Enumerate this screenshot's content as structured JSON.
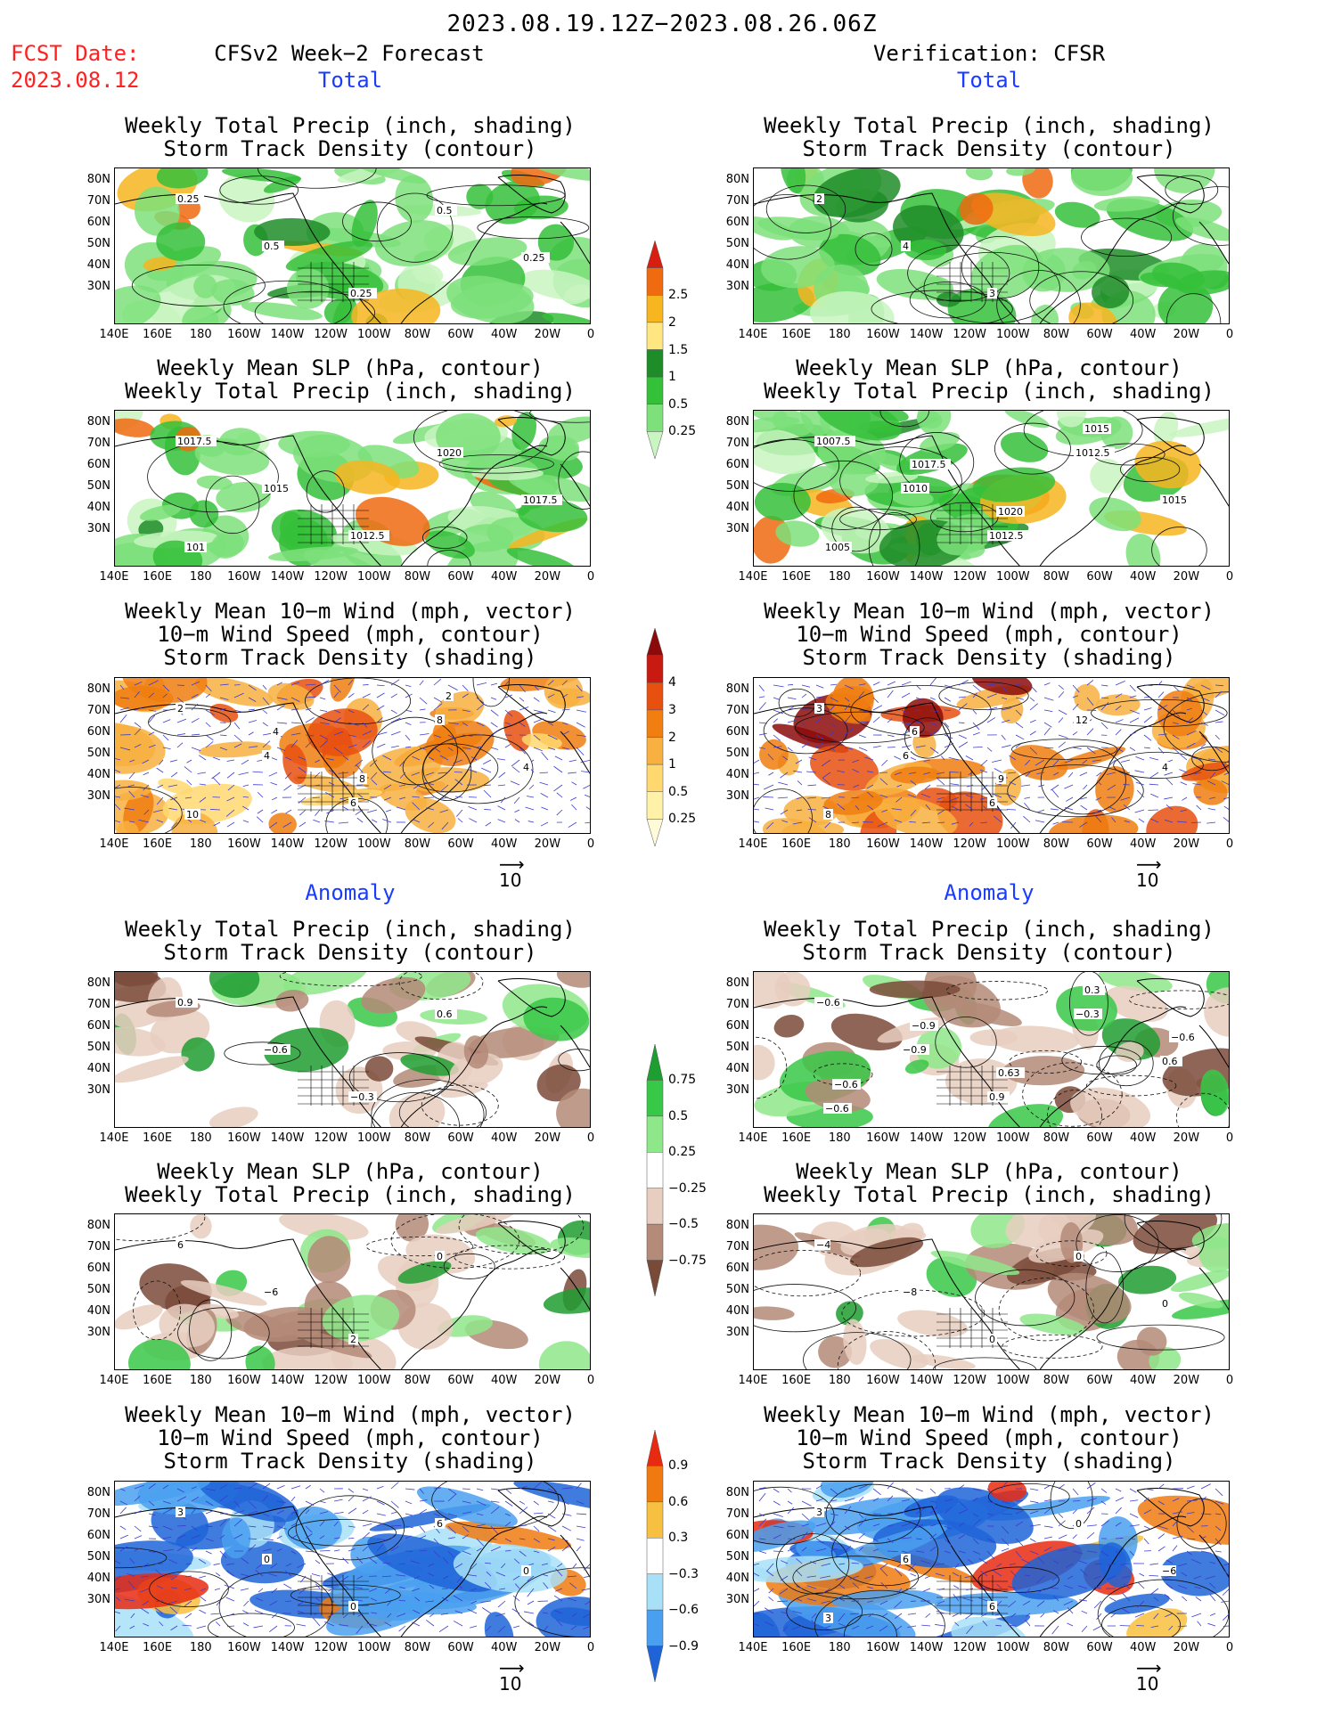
{
  "header": {
    "title": "2023.08.19.12Z−2023.08.26.06Z",
    "fcst_label": "FCST Date:",
    "fcst_date": "2023.08.12",
    "left_title": "CFSv2 Week−2 Forecast",
    "right_title": "Verification: CFSR",
    "total_label": "Total",
    "anomaly_label": "Anomaly"
  },
  "panel_titles": {
    "precip_storm": [
      "Weekly Total Precip (inch, shading)",
      "Storm Track Density (contour)"
    ],
    "slp_precip": [
      "Weekly Mean SLP (hPa, contour)",
      "Weekly Total Precip (inch, shading)"
    ],
    "wind": [
      "Weekly Mean 10−m Wind (mph, vector)",
      "10−m Wind Speed (mph, contour)",
      "Storm Track Density (shading)"
    ]
  },
  "axes": {
    "lon_ticks": [
      "140E",
      "160E",
      "180",
      "160W",
      "140W",
      "120W",
      "100W",
      "80W",
      "60W",
      "40W",
      "20W",
      "0"
    ],
    "lat_ticks": [
      "80N",
      "70N",
      "60N",
      "50N",
      "40N",
      "30N"
    ]
  },
  "colorbars": {
    "precip_total": {
      "labels": [
        "0.25",
        "0.5",
        "1",
        "1.5",
        "2",
        "2.5"
      ],
      "colors": [
        "#c8f5c0",
        "#7de07a",
        "#35c03a",
        "#1e8c28",
        "#ffe680",
        "#f7b520",
        "#f06a10",
        "#d81e10"
      ]
    },
    "storm_total": {
      "labels": [
        "0.25",
        "0.5",
        "1",
        "2",
        "3",
        "4"
      ],
      "colors": [
        "#fffbd8",
        "#fff2a8",
        "#ffd870",
        "#f8b040",
        "#f07e10",
        "#e85010",
        "#c81a10",
        "#8c0a0a"
      ]
    },
    "precip_anom": {
      "labels": [
        "0.75",
        "0.5",
        "0.25",
        "−0.25",
        "−0.5",
        "−0.75"
      ],
      "colors": [
        "#1e9e30",
        "#38c848",
        "#8ee88a",
        "#ffffff",
        "#e8cec0",
        "#b48a78",
        "#7a4a38"
      ]
    },
    "storm_anom": {
      "labels": [
        "0.9",
        "0.6",
        "0.3",
        "−0.3",
        "−0.6",
        "−0.9"
      ],
      "colors": [
        "#e82a10",
        "#f07a10",
        "#f8c040",
        "#ffffff",
        "#a8e0f8",
        "#4aa0f0",
        "#1e64d8"
      ]
    }
  },
  "contour_labels": {
    "ft_precip": [
      "0.25",
      "0.5",
      "0.25",
      "0.5",
      "0.25"
    ],
    "vt_precip": [
      "2",
      "4",
      "3"
    ],
    "ft_slp": [
      "1017.5",
      "1015",
      "1012.5",
      "1020",
      "1017.5",
      "101"
    ],
    "vt_slp": [
      "1007.5",
      "1010",
      "1012.5",
      "1012.5",
      "1015",
      "1005",
      "1017.5",
      "1020",
      "1015"
    ],
    "ft_wind": [
      "2",
      "4",
      "6",
      "8",
      "4",
      "10",
      "4",
      "8",
      "2"
    ],
    "vt_wind": [
      "3",
      "6",
      "6",
      "12",
      "4",
      "8",
      "6",
      "9"
    ],
    "fa_precip": [
      "0.9",
      "−0.6",
      "−0.3",
      "0.6"
    ],
    "va_precip": [
      "−0.6",
      "−0.9",
      "0.9",
      "−0.3",
      "0.6",
      "−0.6",
      "−0.9",
      "0.63",
      "0.3",
      "−0.6",
      "−0.6"
    ],
    "fa_slp": [
      "6",
      "−6",
      "2",
      "0"
    ],
    "va_slp": [
      "−4",
      "−8",
      "0",
      "0",
      "0"
    ],
    "fa_wind": [
      "3",
      "0",
      "0",
      "6",
      "0"
    ],
    "va_wind": [
      "3",
      "6",
      "6",
      "0",
      "−6",
      "3"
    ]
  },
  "vector_ref": "10",
  "vector_arrow": "⟶"
}
